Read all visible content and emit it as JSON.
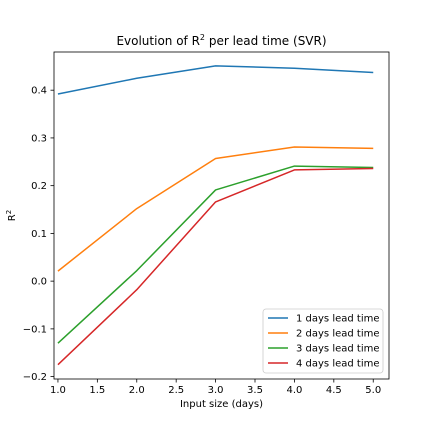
{
  "chart_data": {
    "type": "line",
    "title": "Evolution of R",
    "title_sup": "2",
    "title_rest": " per lead time (SVR)",
    "xlabel": "Input size (days)",
    "ylabel": "R",
    "ylabel_sup": "2",
    "x": [
      1.0,
      2.0,
      3.0,
      4.0,
      5.0
    ],
    "xlim": [
      0.95,
      5.2
    ],
    "ylim": [
      -0.205,
      0.48
    ],
    "xticks": [
      "1.0",
      "1.5",
      "2.0",
      "2.5",
      "3.0",
      "3.5",
      "4.0",
      "4.5",
      "5.0"
    ],
    "xtick_values": [
      1.0,
      1.5,
      2.0,
      2.5,
      3.0,
      3.5,
      4.0,
      4.5,
      5.0
    ],
    "yticks": [
      "−0.2",
      "−0.1",
      "0.0",
      "0.1",
      "0.2",
      "0.3",
      "0.4"
    ],
    "ytick_values": [
      -0.2,
      -0.1,
      0.0,
      0.1,
      0.2,
      0.3,
      0.4
    ],
    "grid": false,
    "legend_position": "lower-right",
    "series": [
      {
        "name": "1 days lead time",
        "color": "#1f77b4",
        "values": [
          0.392,
          0.425,
          0.451,
          0.446,
          0.437
        ]
      },
      {
        "name": "2 days lead time",
        "color": "#ff7f0e",
        "values": [
          0.021,
          0.152,
          0.257,
          0.281,
          0.278
        ]
      },
      {
        "name": "3 days lead time",
        "color": "#2ca02c",
        "values": [
          -0.13,
          0.022,
          0.191,
          0.241,
          0.238
        ]
      },
      {
        "name": "4 days lead time",
        "color": "#d62728",
        "values": [
          -0.175,
          -0.018,
          0.166,
          0.233,
          0.236
        ]
      }
    ]
  }
}
